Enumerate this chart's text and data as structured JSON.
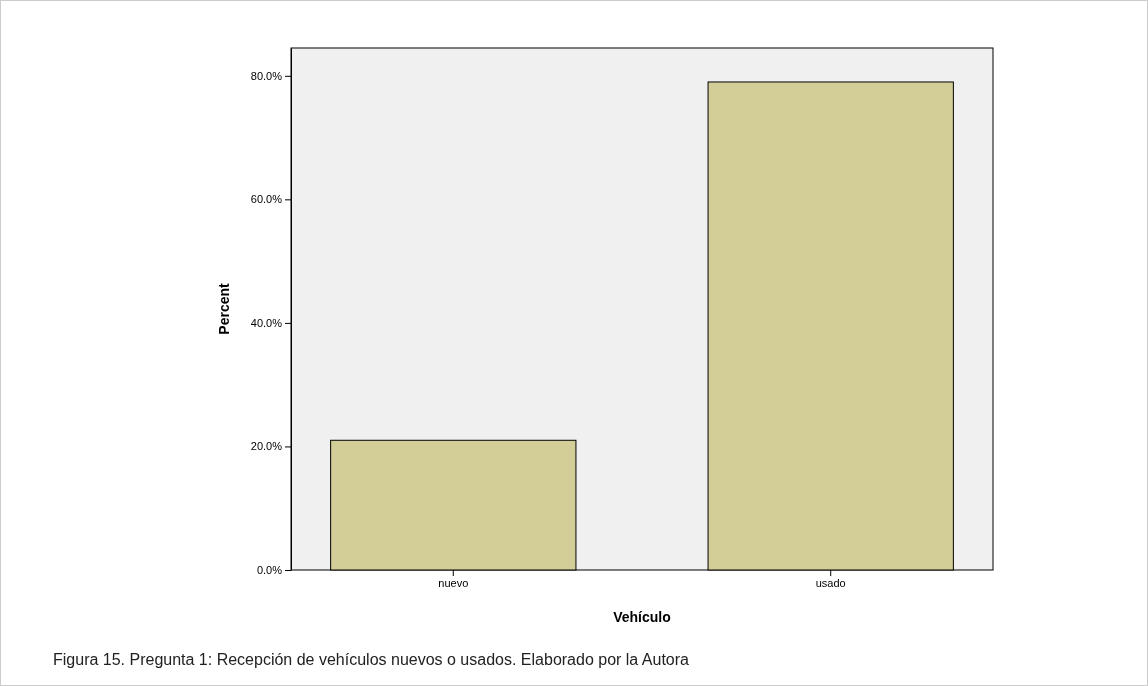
{
  "chart_data": {
    "type": "bar",
    "xlabel": "Vehículo",
    "ylabel": "Percent",
    "categories": [
      "nuevo",
      "usado"
    ],
    "values": [
      21.0,
      79.0
    ],
    "color": "#d3ce97",
    "ylim": [
      0,
      84.5
    ],
    "yticks": [
      {
        "value": 0,
        "label": "0.0%"
      },
      {
        "value": 20,
        "label": "20.0%"
      },
      {
        "value": 40,
        "label": "40.0%"
      },
      {
        "value": 60,
        "label": "60.0%"
      },
      {
        "value": 80,
        "label": "80.0%"
      }
    ],
    "grid": false,
    "annotations": [
      "Figura 15. Pregunta 1: Recepción de vehículos nuevos o usados. Elaborado por la Autora"
    ]
  }
}
